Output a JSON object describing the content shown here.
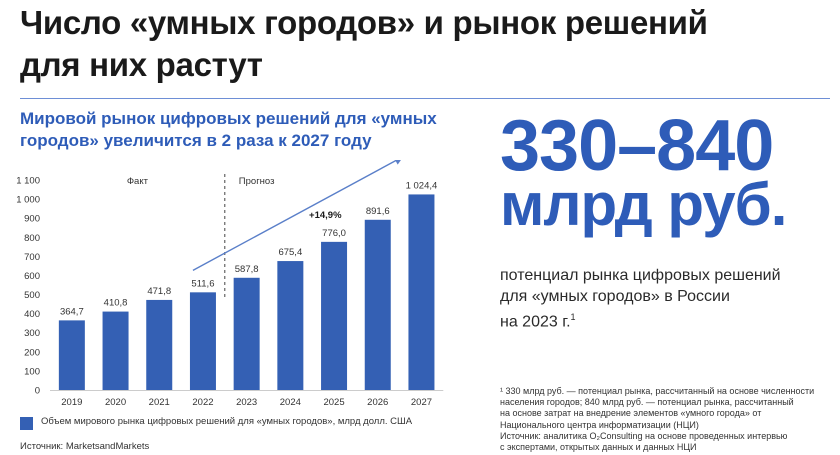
{
  "header": {
    "title_line1": "Число «умных городов» и рынок решений",
    "title_line2": "для них растут"
  },
  "chart_title_line1": "Мировой рынок цифровых решений для «умных",
  "chart_title_line2": "городов» увеличится в 2 раза к 2027 году",
  "chart_data": {
    "type": "bar",
    "categories": [
      "2019",
      "2020",
      "2021",
      "2022",
      "2023",
      "2024",
      "2025",
      "2026",
      "2027"
    ],
    "values": [
      364.7,
      410.8,
      471.8,
      511.6,
      587.8,
      675.4,
      776.0,
      891.6,
      1024.4
    ],
    "value_labels": [
      "364,7",
      "410,8",
      "471,8",
      "511,6",
      "587,8",
      "675,4",
      "776,0",
      "891,6",
      "1 024,4"
    ],
    "ylim": [
      0,
      1100
    ],
    "yticks": [
      0,
      100,
      200,
      300,
      400,
      500,
      600,
      700,
      800,
      900,
      1000,
      1100
    ],
    "ytick_labels": [
      "0",
      "100",
      "200",
      "300",
      "400",
      "500",
      "600",
      "700",
      "800",
      "900",
      "1 000",
      "1 100"
    ],
    "period_labels": [
      "Факт",
      "Прогноз"
    ],
    "growth_annotation": "+14,9%",
    "legend": "Объем мирового рынка цифровых решений для «умных городов», млрд долл. США",
    "bar_color": "#3460b4"
  },
  "source": "Источник: MarketsandMarkets",
  "highlight": {
    "range": "330–840",
    "unit": "млрд руб.",
    "desc_line1": "потенциал рынка цифровых решений",
    "desc_line2": "для «умных городов» в России",
    "desc_line3": "на 2023 г.",
    "desc_sup": "1"
  },
  "footnote": {
    "line1": "¹ 330 млрд руб. — потенциал рынка, рассчитанный на основе численности",
    "line2": "населения городов; 840 млрд руб. — потенциал рынка, рассчитанный",
    "line3": "на основе затрат на внедрение элементов «умного города» от",
    "line4": "Национального центра информатизации (НЦИ)",
    "line5": "Источник: аналитика O₂Consulting на основе проведенных интервью",
    "line6": "с экспертами, открытых данных и данных НЦИ"
  }
}
